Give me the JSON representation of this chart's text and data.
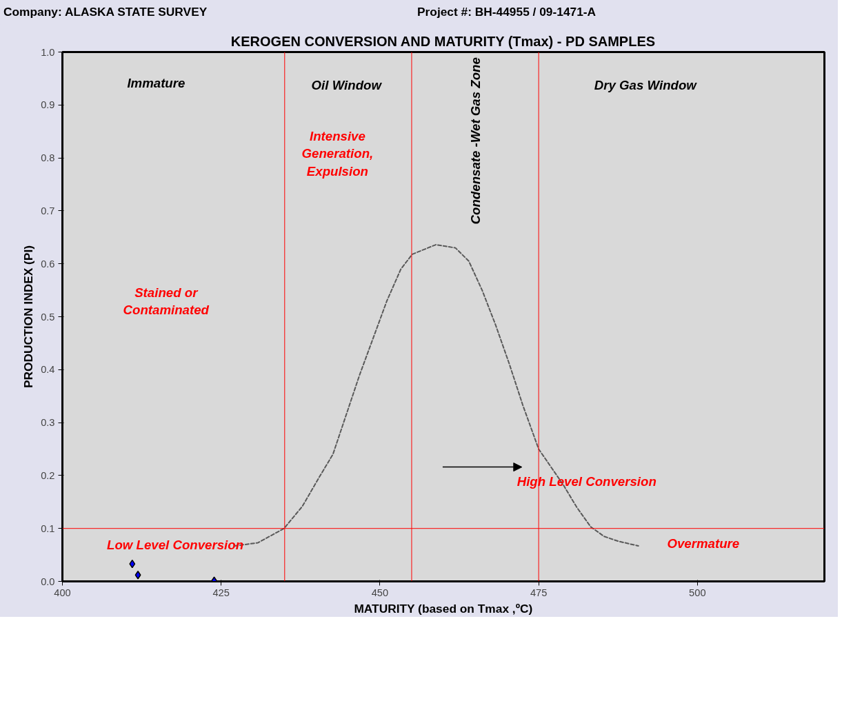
{
  "chart_data": {
    "type": "scatter",
    "title": "KEROGEN CONVERSION AND MATURITY (Tmax) - PD SAMPLES",
    "xlabel": "MATURITY (based on Tmax ,ºC)",
    "ylabel": "PRODUCTION INDEX (PI)",
    "xlim": [
      400,
      520
    ],
    "xticks": [
      400,
      425,
      450,
      475,
      500
    ],
    "ylim": [
      0,
      1
    ],
    "yticks": [
      {
        "value": 0,
        "label": "0.0"
      },
      0.1,
      0.2,
      0.3,
      0.4,
      0.5,
      0.6,
      0.7,
      0.8,
      0.9,
      {
        "value": 1,
        "label": "1.0"
      }
    ],
    "grid": false,
    "series": [
      {
        "color": "#0000ff",
        "marker": "diamond",
        "x": [
          411.0,
          411.9,
          423.9
        ],
        "values": [
          0.033,
          0.012,
          0.001
        ]
      },
      {
        "type": "line",
        "color": "#595959",
        "line_style": "dashed",
        "x": [
          427.1,
          430.8,
          434.9,
          437.8,
          440.4,
          442.6,
          444.7,
          446.8,
          451.1,
          453.3,
          455.1,
          458.8,
          461.9,
          464.0,
          466.1,
          468.2,
          470.4,
          472.5,
          475.0,
          478.9,
          481.0,
          483.2,
          485.3,
          487.5,
          490.7
        ],
        "values": [
          0.067,
          0.073,
          0.1,
          0.142,
          0.196,
          0.24,
          0.315,
          0.39,
          0.53,
          0.59,
          0.618,
          0.636,
          0.63,
          0.605,
          0.55,
          0.485,
          0.41,
          0.333,
          0.25,
          0.182,
          0.14,
          0.103,
          0.085,
          0.076,
          0.067
        ]
      }
    ],
    "ref_lines": [
      {
        "axis": "x",
        "value": 435,
        "color": "#ff0000"
      },
      {
        "axis": "x",
        "value": 455,
        "color": "#ff0000"
      },
      {
        "axis": "x",
        "value": 475,
        "color": "#ff0000"
      },
      {
        "axis": "y",
        "value": 0.1,
        "color": "#ff0000"
      }
    ],
    "annotations": [
      "Company:  ALASKA STATE SURVEY",
      "Project #:  BH-44955 / 09-1471-A",
      "Immature",
      "Oil  Window",
      "Condensate -Wet Gas Zone",
      "Dry Gas Window",
      "Intensive\nGeneration,\nExpulsion",
      "Stained or\nContaminated",
      "Low Level Conversion",
      "High Level Conversion",
      "Overmature"
    ]
  }
}
